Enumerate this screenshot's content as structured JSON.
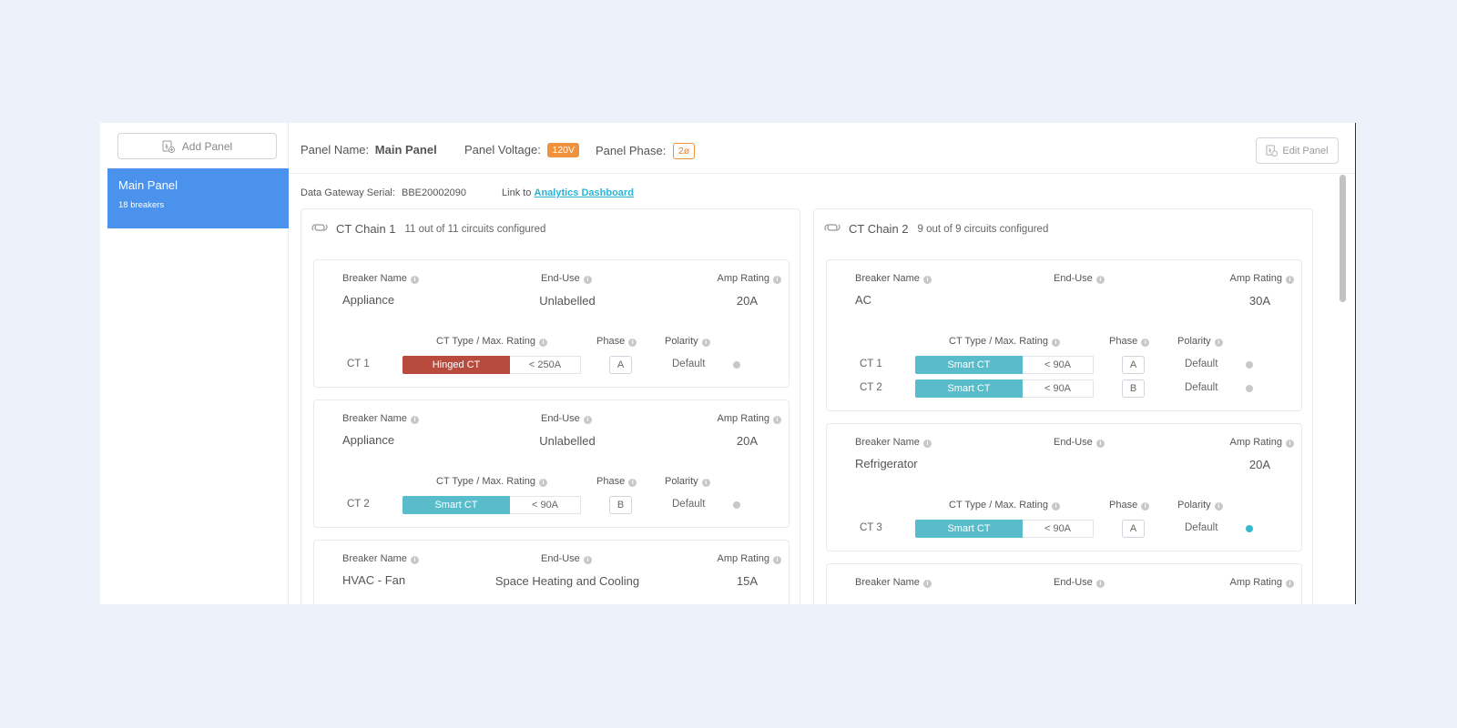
{
  "sidebar": {
    "add_panel_label": "Add Panel",
    "panels": [
      {
        "name": "Main Panel",
        "sub": "18 breakers"
      }
    ]
  },
  "header": {
    "panel_name_label": "Panel Name:",
    "panel_name": "Main Panel",
    "voltage_label": "Panel Voltage:",
    "voltage": "120V",
    "phase_label": "Panel Phase:",
    "phase": "2ø",
    "edit_label": "Edit Panel"
  },
  "gateway": {
    "label": "Data Gateway Serial:",
    "serial": "BBE20002090",
    "link_prefix": "Link to",
    "link_text": "Analytics Dashboard"
  },
  "labels": {
    "breaker_name": "Breaker Name",
    "end_use": "End-Use",
    "amp_rating": "Amp Rating",
    "ct_type": "CT Type / Max. Rating",
    "phase": "Phase",
    "polarity": "Polarity",
    "info": "i"
  },
  "chains": [
    {
      "title": "CT Chain 1",
      "configured": "11 out of 11 circuits configured",
      "cards": [
        {
          "breaker": "Appliance",
          "end_use": "Unlabelled",
          "amp": "20A",
          "cts": [
            {
              "label": "CT 1",
              "type": "Hinged CT",
              "rating": "< 250A",
              "phase": "A",
              "polarity": "Default",
              "active": false
            }
          ]
        },
        {
          "breaker": "Appliance",
          "end_use": "Unlabelled",
          "amp": "20A",
          "cts": [
            {
              "label": "CT 2",
              "type": "Smart CT",
              "rating": "< 90A",
              "phase": "B",
              "polarity": "Default",
              "active": false
            }
          ]
        },
        {
          "breaker": "HVAC - Fan",
          "end_use": "Space Heating and Cooling",
          "amp": "15A",
          "cts": []
        }
      ]
    },
    {
      "title": "CT Chain 2",
      "configured": "9 out of 9 circuits configured",
      "cards": [
        {
          "breaker": "AC",
          "end_use": "",
          "amp": "30A",
          "cts": [
            {
              "label": "CT 1",
              "type": "Smart CT",
              "rating": "< 90A",
              "phase": "A",
              "polarity": "Default",
              "active": false
            },
            {
              "label": "CT 2",
              "type": "Smart CT",
              "rating": "< 90A",
              "phase": "B",
              "polarity": "Default",
              "active": false
            }
          ]
        },
        {
          "breaker": "Refrigerator",
          "end_use": "",
          "amp": "20A",
          "cts": [
            {
              "label": "CT 3",
              "type": "Smart CT",
              "rating": "< 90A",
              "phase": "A",
              "polarity": "Default",
              "active": true
            }
          ]
        },
        {
          "breaker": "",
          "end_use": "",
          "amp": "",
          "cts": []
        }
      ]
    }
  ]
}
